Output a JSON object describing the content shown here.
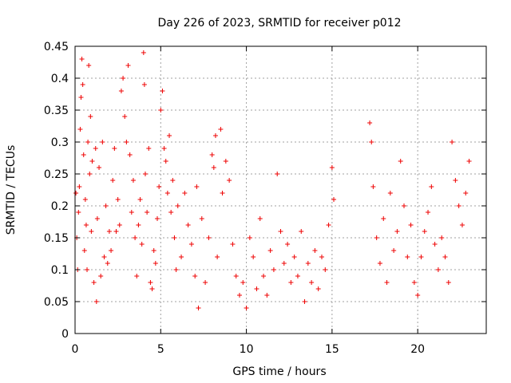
{
  "chart_data": {
    "type": "scatter",
    "title": "Day 226 of 2023, SRMTID for receiver p012",
    "xlabel": "GPS time / hours",
    "ylabel": "SRMTID / TECUs",
    "xlim": [
      0,
      24
    ],
    "ylim": [
      0,
      0.45
    ],
    "xticks": [
      0,
      5,
      10,
      15,
      20
    ],
    "xtick_labels": [
      "0",
      "5",
      "10",
      "15",
      "20"
    ],
    "yticks": [
      0,
      0.05,
      0.1,
      0.15,
      0.2,
      0.25,
      0.3,
      0.35,
      0.4,
      0.45
    ],
    "ytick_labels": [
      "0",
      "0.05",
      "0.1",
      "0.15",
      "0.2",
      "0.25",
      "0.3",
      "0.35",
      "0.4",
      "0.45"
    ],
    "grid": true,
    "marker": "+",
    "color": "#ee0000",
    "series": [
      {
        "name": "SRMTID",
        "points": [
          [
            0.05,
            0.22
          ],
          [
            0.1,
            0.15
          ],
          [
            0.15,
            0.1
          ],
          [
            0.2,
            0.19
          ],
          [
            0.25,
            0.23
          ],
          [
            0.3,
            0.32
          ],
          [
            0.35,
            0.37
          ],
          [
            0.4,
            0.43
          ],
          [
            0.45,
            0.39
          ],
          [
            0.5,
            0.28
          ],
          [
            0.55,
            0.13
          ],
          [
            0.6,
            0.21
          ],
          [
            0.65,
            0.17
          ],
          [
            0.7,
            0.1
          ],
          [
            0.75,
            0.3
          ],
          [
            0.8,
            0.42
          ],
          [
            0.85,
            0.25
          ],
          [
            0.9,
            0.34
          ],
          [
            0.95,
            0.16
          ],
          [
            1.0,
            0.27
          ],
          [
            1.1,
            0.08
          ],
          [
            1.2,
            0.29
          ],
          [
            1.25,
            0.05
          ],
          [
            1.3,
            0.18
          ],
          [
            1.4,
            0.26
          ],
          [
            1.5,
            0.09
          ],
          [
            1.6,
            0.3
          ],
          [
            1.7,
            0.12
          ],
          [
            1.8,
            0.2
          ],
          [
            1.9,
            0.11
          ],
          [
            2.0,
            0.16
          ],
          [
            2.1,
            0.13
          ],
          [
            2.2,
            0.24
          ],
          [
            2.3,
            0.29
          ],
          [
            2.4,
            0.16
          ],
          [
            2.5,
            0.21
          ],
          [
            2.6,
            0.17
          ],
          [
            2.7,
            0.38
          ],
          [
            2.8,
            0.4
          ],
          [
            2.9,
            0.34
          ],
          [
            3.0,
            0.3
          ],
          [
            3.1,
            0.42
          ],
          [
            3.2,
            0.28
          ],
          [
            3.3,
            0.19
          ],
          [
            3.4,
            0.24
          ],
          [
            3.5,
            0.15
          ],
          [
            3.6,
            0.09
          ],
          [
            3.7,
            0.17
          ],
          [
            3.8,
            0.21
          ],
          [
            3.9,
            0.14
          ],
          [
            4.0,
            0.44
          ],
          [
            4.05,
            0.39
          ],
          [
            4.1,
            0.25
          ],
          [
            4.2,
            0.19
          ],
          [
            4.3,
            0.29
          ],
          [
            4.4,
            0.08
          ],
          [
            4.5,
            0.07
          ],
          [
            4.6,
            0.13
          ],
          [
            4.7,
            0.11
          ],
          [
            4.8,
            0.18
          ],
          [
            4.9,
            0.23
          ],
          [
            5.0,
            0.35
          ],
          [
            5.1,
            0.38
          ],
          [
            5.2,
            0.29
          ],
          [
            5.3,
            0.27
          ],
          [
            5.4,
            0.22
          ],
          [
            5.5,
            0.31
          ],
          [
            5.6,
            0.19
          ],
          [
            5.7,
            0.24
          ],
          [
            5.8,
            0.15
          ],
          [
            5.9,
            0.1
          ],
          [
            6.0,
            0.2
          ],
          [
            6.2,
            0.12
          ],
          [
            6.4,
            0.22
          ],
          [
            6.6,
            0.17
          ],
          [
            6.8,
            0.14
          ],
          [
            7.0,
            0.09
          ],
          [
            7.1,
            0.23
          ],
          [
            7.2,
            0.04
          ],
          [
            7.4,
            0.18
          ],
          [
            7.6,
            0.08
          ],
          [
            7.8,
            0.15
          ],
          [
            8.0,
            0.28
          ],
          [
            8.1,
            0.26
          ],
          [
            8.2,
            0.31
          ],
          [
            8.3,
            0.12
          ],
          [
            8.5,
            0.32
          ],
          [
            8.6,
            0.22
          ],
          [
            8.8,
            0.27
          ],
          [
            9.0,
            0.24
          ],
          [
            9.2,
            0.14
          ],
          [
            9.4,
            0.09
          ],
          [
            9.6,
            0.06
          ],
          [
            9.8,
            0.08
          ],
          [
            10.0,
            0.04
          ],
          [
            10.2,
            0.15
          ],
          [
            10.4,
            0.12
          ],
          [
            10.6,
            0.07
          ],
          [
            10.8,
            0.18
          ],
          [
            11.0,
            0.09
          ],
          [
            11.2,
            0.06
          ],
          [
            11.4,
            0.13
          ],
          [
            11.6,
            0.1
          ],
          [
            11.8,
            0.25
          ],
          [
            12.0,
            0.16
          ],
          [
            12.2,
            0.11
          ],
          [
            12.4,
            0.14
          ],
          [
            12.6,
            0.08
          ],
          [
            12.8,
            0.12
          ],
          [
            13.0,
            0.09
          ],
          [
            13.2,
            0.16
          ],
          [
            13.4,
            0.05
          ],
          [
            13.6,
            0.11
          ],
          [
            13.8,
            0.08
          ],
          [
            14.0,
            0.13
          ],
          [
            14.2,
            0.07
          ],
          [
            14.4,
            0.12
          ],
          [
            14.6,
            0.1
          ],
          [
            14.8,
            0.17
          ],
          [
            15.0,
            0.26
          ],
          [
            15.1,
            0.21
          ],
          [
            17.2,
            0.33
          ],
          [
            17.3,
            0.3
          ],
          [
            17.4,
            0.23
          ],
          [
            17.6,
            0.15
          ],
          [
            17.8,
            0.11
          ],
          [
            18.0,
            0.18
          ],
          [
            18.2,
            0.08
          ],
          [
            18.4,
            0.22
          ],
          [
            18.6,
            0.13
          ],
          [
            18.8,
            0.16
          ],
          [
            19.0,
            0.27
          ],
          [
            19.2,
            0.2
          ],
          [
            19.4,
            0.12
          ],
          [
            19.6,
            0.17
          ],
          [
            19.8,
            0.08
          ],
          [
            20.0,
            0.06
          ],
          [
            20.2,
            0.12
          ],
          [
            20.4,
            0.16
          ],
          [
            20.6,
            0.19
          ],
          [
            20.8,
            0.23
          ],
          [
            21.0,
            0.14
          ],
          [
            21.2,
            0.1
          ],
          [
            21.4,
            0.15
          ],
          [
            21.6,
            0.12
          ],
          [
            21.8,
            0.08
          ],
          [
            22.0,
            0.3
          ],
          [
            22.2,
            0.24
          ],
          [
            22.4,
            0.2
          ],
          [
            22.6,
            0.17
          ],
          [
            22.8,
            0.22
          ],
          [
            23.0,
            0.27
          ]
        ]
      }
    ]
  }
}
